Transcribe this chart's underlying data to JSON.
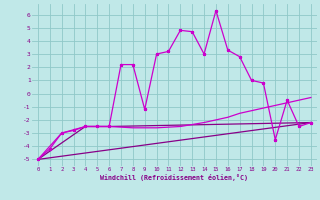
{
  "xlabel": "Windchill (Refroidissement éolien,°C)",
  "bg_color": "#c0e8e8",
  "grid_color": "#90c8c8",
  "line_color": "#cc00cc",
  "line_color2": "#880088",
  "xlim": [
    -0.5,
    23.5
  ],
  "ylim": [
    -5.5,
    6.8
  ],
  "xticks": [
    0,
    1,
    2,
    3,
    4,
    5,
    6,
    7,
    8,
    9,
    10,
    11,
    12,
    13,
    14,
    15,
    16,
    17,
    18,
    19,
    20,
    21,
    22,
    23
  ],
  "yticks": [
    -5,
    -4,
    -3,
    -2,
    -1,
    0,
    1,
    2,
    3,
    4,
    5,
    6
  ],
  "series1_x": [
    0,
    1,
    2,
    3,
    4,
    5,
    6,
    7,
    8,
    9,
    10,
    11,
    12,
    13,
    14,
    15,
    16,
    17,
    18,
    19,
    20,
    21,
    22,
    23
  ],
  "series1_y": [
    -5.0,
    -4.2,
    -3.0,
    -2.8,
    -2.5,
    -2.5,
    -2.5,
    2.2,
    2.2,
    -1.2,
    3.0,
    3.2,
    4.8,
    4.7,
    3.0,
    6.3,
    3.3,
    2.8,
    1.0,
    0.8,
    -3.5,
    -0.5,
    -2.5,
    -2.2
  ],
  "series2_x": [
    0,
    2,
    4,
    6,
    8,
    10,
    12,
    14,
    16,
    17,
    18,
    19,
    20,
    21,
    22,
    23
  ],
  "series2_y": [
    -5.0,
    -3.0,
    -2.5,
    -2.5,
    -2.6,
    -2.6,
    -2.5,
    -2.2,
    -1.8,
    -1.5,
    -1.3,
    -1.1,
    -0.9,
    -0.7,
    -0.5,
    -0.3
  ],
  "series3_x": [
    0,
    23
  ],
  "series3_y": [
    -5.0,
    -2.2
  ],
  "series4_x": [
    0,
    4,
    6,
    23
  ],
  "series4_y": [
    -5.0,
    -2.5,
    -2.5,
    -2.2
  ]
}
